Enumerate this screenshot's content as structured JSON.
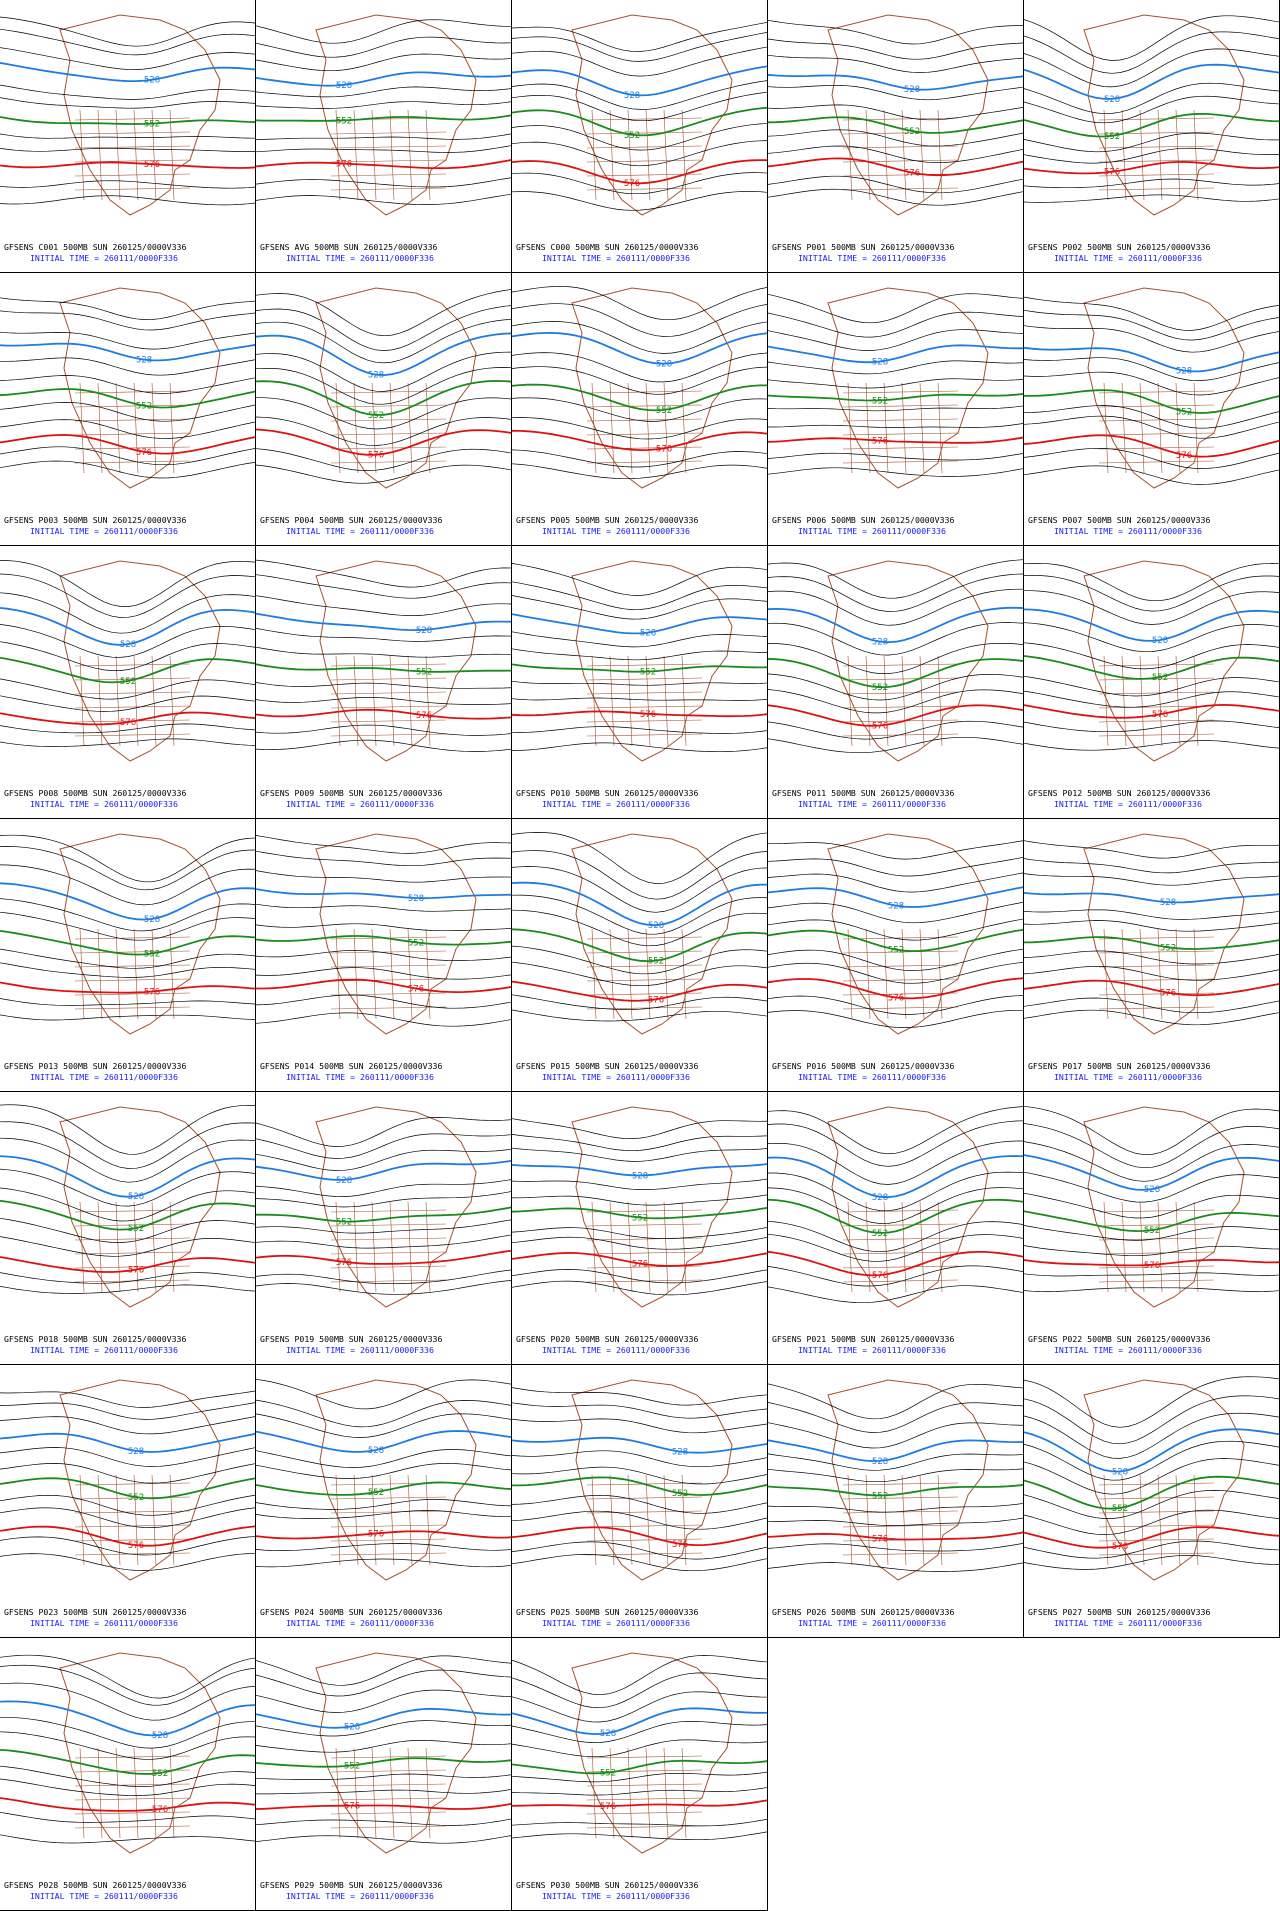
{
  "panels": [
    {
      "title": "GFSENS C001 500MB SUN 260125/0000V336",
      "initial_time": "INITIAL TIME = 260111/0000F336",
      "contour_labels": [
        "576",
        "552",
        "528"
      ]
    },
    {
      "title": "GFSENS AVG 500MB SUN 260125/0000V336",
      "initial_time": "INITIAL TIME = 260111/0000F336",
      "contour_labels": [
        "576",
        "552",
        "528"
      ]
    },
    {
      "title": "GFSENS C000 500MB SUN 260125/0000V336",
      "initial_time": "INITIAL TIME = 260111/0000F336",
      "contour_labels": [
        "576",
        "552",
        "528"
      ]
    },
    {
      "title": "GFSENS P001 500MB SUN 260125/0000V336",
      "initial_time": "INITIAL TIME = 260111/0000F336",
      "contour_labels": [
        "576",
        "552",
        "528"
      ]
    },
    {
      "title": "GFSENS P002 500MB SUN 260125/0000V336",
      "initial_time": "INITIAL TIME = 260111/0000F336",
      "contour_labels": [
        "576",
        "552",
        "528"
      ]
    },
    {
      "title": "GFSENS P003 500MB SUN 260125/0000V336",
      "initial_time": "INITIAL TIME = 260111/0000F336",
      "contour_labels": [
        "576",
        "552",
        "528"
      ]
    },
    {
      "title": "GFSENS P004 500MB SUN 260125/0000V336",
      "initial_time": "INITIAL TIME = 260111/0000F336",
      "contour_labels": [
        "576",
        "552",
        "528"
      ]
    },
    {
      "title": "GFSENS P005 500MB SUN 260125/0000V336",
      "initial_time": "INITIAL TIME = 260111/0000F336",
      "contour_labels": [
        "576",
        "552",
        "528"
      ]
    },
    {
      "title": "GFSENS P006 500MB SUN 260125/0000V336",
      "initial_time": "INITIAL TIME = 260111/0000F336",
      "contour_labels": [
        "576",
        "552",
        "528"
      ]
    },
    {
      "title": "GFSENS P007 500MB SUN 260125/0000V336",
      "initial_time": "INITIAL TIME = 260111/0000F336",
      "contour_labels": [
        "576",
        "552",
        "528"
      ]
    },
    {
      "title": "GFSENS P008 500MB SUN 260125/0000V336",
      "initial_time": "INITIAL TIME = 260111/0000F336",
      "contour_labels": [
        "576",
        "552",
        "528"
      ]
    },
    {
      "title": "GFSENS P009 500MB SUN 260125/0000V336",
      "initial_time": "INITIAL TIME = 260111/0000F336",
      "contour_labels": [
        "576",
        "552",
        "528"
      ]
    },
    {
      "title": "GFSENS P010 500MB SUN 260125/0000V336",
      "initial_time": "INITIAL TIME = 260111/0000F336",
      "contour_labels": [
        "576",
        "552",
        "528"
      ]
    },
    {
      "title": "GFSENS P011 500MB SUN 260125/0000V336",
      "initial_time": "INITIAL TIME = 260111/0000F336",
      "contour_labels": [
        "576",
        "552",
        "528"
      ]
    },
    {
      "title": "GFSENS P012 500MB SUN 260125/0000V336",
      "initial_time": "INITIAL TIME = 260111/0000F336",
      "contour_labels": [
        "576",
        "552",
        "528"
      ]
    },
    {
      "title": "GFSENS P013 500MB SUN 260125/0000V336",
      "initial_time": "INITIAL TIME = 260111/0000F336",
      "contour_labels": [
        "576",
        "552",
        "528"
      ]
    },
    {
      "title": "GFSENS P014 500MB SUN 260125/0000V336",
      "initial_time": "INITIAL TIME = 260111/0000F336",
      "contour_labels": [
        "576",
        "552",
        "528"
      ]
    },
    {
      "title": "GFSENS P015 500MB SUN 260125/0000V336",
      "initial_time": "INITIAL TIME = 260111/0000F336",
      "contour_labels": [
        "576",
        "552",
        "528"
      ]
    },
    {
      "title": "GFSENS P016 500MB SUN 260125/0000V336",
      "initial_time": "INITIAL TIME = 260111/0000F336",
      "contour_labels": [
        "576",
        "552",
        "528"
      ]
    },
    {
      "title": "GFSENS P017 500MB SUN 260125/0000V336",
      "initial_time": "INITIAL TIME = 260111/0000F336",
      "contour_labels": [
        "576",
        "552",
        "528"
      ]
    },
    {
      "title": "GFSENS P018 500MB SUN 260125/0000V336",
      "initial_time": "INITIAL TIME = 260111/0000F336",
      "contour_labels": [
        "576",
        "552",
        "528"
      ]
    },
    {
      "title": "GFSENS P019 500MB SUN 260125/0000V336",
      "initial_time": "INITIAL TIME = 260111/0000F336",
      "contour_labels": [
        "576",
        "552",
        "528"
      ]
    },
    {
      "title": "GFSENS P020 500MB SUN 260125/0000V336",
      "initial_time": "INITIAL TIME = 260111/0000F336",
      "contour_labels": [
        "576",
        "552",
        "528"
      ]
    },
    {
      "title": "GFSENS P021 500MB SUN 260125/0000V336",
      "initial_time": "INITIAL TIME = 260111/0000F336",
      "contour_labels": [
        "576",
        "552",
        "528"
      ]
    },
    {
      "title": "GFSENS P022 500MB SUN 260125/0000V336",
      "initial_time": "INITIAL TIME = 260111/0000F336",
      "contour_labels": [
        "576",
        "552",
        "528"
      ]
    },
    {
      "title": "GFSENS P023 500MB SUN 260125/0000V336",
      "initial_time": "INITIAL TIME = 260111/0000F336",
      "contour_labels": [
        "576",
        "552",
        "528"
      ]
    },
    {
      "title": "GFSENS P024 500MB SUN 260125/0000V336",
      "initial_time": "INITIAL TIME = 260111/0000F336",
      "contour_labels": [
        "576",
        "552",
        "528"
      ]
    },
    {
      "title": "GFSENS P025 500MB SUN 260125/0000V336",
      "initial_time": "INITIAL TIME = 260111/0000F336",
      "contour_labels": [
        "576",
        "552",
        "528"
      ]
    },
    {
      "title": "GFSENS P026 500MB SUN 260125/0000V336",
      "initial_time": "INITIAL TIME = 260111/0000F336",
      "contour_labels": [
        "576",
        "552",
        "528"
      ]
    },
    {
      "title": "GFSENS P027 500MB SUN 260125/0000V336",
      "initial_time": "INITIAL TIME = 260111/0000F336",
      "contour_labels": [
        "576",
        "552",
        "528"
      ]
    },
    {
      "title": "GFSENS P028 500MB SUN 260125/0000V336",
      "initial_time": "INITIAL TIME = 260111/0000F336",
      "contour_labels": [
        "576",
        "552",
        "528"
      ]
    },
    {
      "title": "GFSENS P029 500MB SUN 260125/0000V336",
      "initial_time": "INITIAL TIME = 260111/0000F336",
      "contour_labels": [
        "576",
        "552",
        "528"
      ]
    },
    {
      "title": "GFSENS P030 500MB SUN 260125/0000V336",
      "initial_time": "INITIAL TIME = 260111/0000F336",
      "contour_labels": [
        "576",
        "552",
        "528"
      ]
    }
  ]
}
